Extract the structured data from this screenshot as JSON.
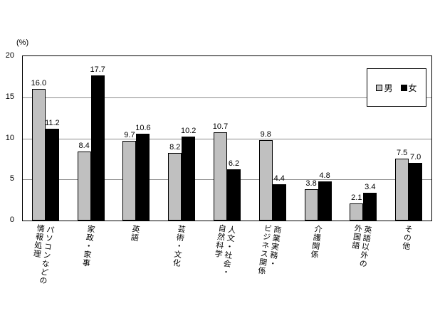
{
  "unit_label": "(%)",
  "colors": {
    "male_bar": "#c0c0c0",
    "female_bar": "#000000",
    "gridline": "#8c8c8c",
    "frame": "#000000",
    "background": "#ffffff"
  },
  "legend": {
    "items": [
      {
        "label": "男",
        "color": "#c0c0c0"
      },
      {
        "label": "女",
        "color": "#000000"
      }
    ]
  },
  "chart_data": {
    "type": "bar",
    "title": "",
    "xlabel": "",
    "ylabel": "(%)",
    "ylim": [
      0,
      20
    ],
    "yticks": [
      0,
      5,
      10,
      15,
      20
    ],
    "grid": true,
    "legend_position": "top-right-inside",
    "categories": [
      "パソコンなどの情報処理",
      "家政・家事",
      "英語",
      "芸術・文化",
      "人文・社会・自然科学",
      "商業実務・ビジネス関係",
      "介護関係",
      "英語以外の外国語",
      "その他"
    ],
    "category_display": [
      "パソコンなどの\n情報処理",
      "家政・家事",
      "英語",
      "芸術・文化",
      "人文・社会・\n自然科学",
      "商業実務・\nビジネス関係",
      "介護関係",
      "英語以外の\n外国語",
      "その他"
    ],
    "series": [
      {
        "name": "男",
        "color": "#c0c0c0",
        "values": [
          16.0,
          8.4,
          9.7,
          8.2,
          10.7,
          9.8,
          3.8,
          2.1,
          7.5
        ]
      },
      {
        "name": "女",
        "color": "#000000",
        "values": [
          11.2,
          17.7,
          10.6,
          10.2,
          6.2,
          4.4,
          4.8,
          3.4,
          7.0
        ]
      }
    ]
  }
}
